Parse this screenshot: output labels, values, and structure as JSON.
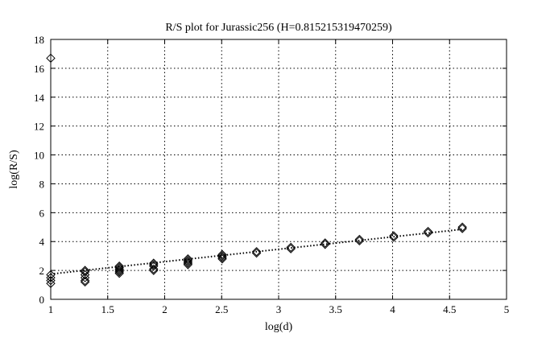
{
  "chart_data": {
    "type": "scatter",
    "title": "R/S plot for Jurassic256 (H=0.815215319470259)",
    "xlabel": "log(d)",
    "ylabel": "log(R/S)",
    "xlim": [
      1,
      5
    ],
    "ylim": [
      0,
      18
    ],
    "xticks": [
      1,
      1.5,
      2,
      2.5,
      3,
      3.5,
      4,
      4.5,
      5
    ],
    "xtick_labels": [
      "1",
      "1.5",
      "2",
      "2.5",
      "3",
      "3.5",
      "4",
      "4.5",
      "5"
    ],
    "yticks": [
      0,
      2,
      4,
      6,
      8,
      10,
      12,
      14,
      16,
      18
    ],
    "ytick_labels": [
      "0",
      "2",
      "4",
      "6",
      "8",
      "10",
      "12",
      "14",
      "16",
      "18"
    ],
    "grid": true,
    "marker": "diamond",
    "series": [
      {
        "points": [
          [
            1.0,
            16.7
          ],
          [
            1.0,
            1.7
          ],
          [
            1.0,
            1.5
          ],
          [
            1.0,
            1.3
          ],
          [
            1.0,
            1.1
          ],
          [
            1.301,
            2.0
          ],
          [
            1.301,
            1.9
          ],
          [
            1.301,
            1.7
          ],
          [
            1.301,
            1.5
          ],
          [
            1.301,
            1.3
          ],
          [
            1.301,
            1.2
          ],
          [
            1.602,
            2.3
          ],
          [
            1.602,
            2.2
          ],
          [
            1.602,
            2.1
          ],
          [
            1.602,
            2.0
          ],
          [
            1.602,
            1.9
          ],
          [
            1.602,
            1.8
          ],
          [
            1.903,
            2.5
          ],
          [
            1.903,
            2.4
          ],
          [
            1.903,
            2.3
          ],
          [
            1.903,
            2.1
          ],
          [
            1.903,
            2.0
          ],
          [
            2.204,
            2.8
          ],
          [
            2.204,
            2.7
          ],
          [
            2.204,
            2.6
          ],
          [
            2.204,
            2.5
          ],
          [
            2.204,
            2.4
          ],
          [
            2.505,
            3.1
          ],
          [
            2.505,
            3.0
          ],
          [
            2.505,
            2.9
          ],
          [
            2.505,
            2.8
          ],
          [
            2.806,
            3.3
          ],
          [
            2.806,
            3.2
          ],
          [
            3.107,
            3.6
          ],
          [
            3.107,
            3.5
          ],
          [
            3.408,
            3.9
          ],
          [
            3.408,
            3.8
          ],
          [
            3.709,
            4.15
          ],
          [
            3.709,
            4.05
          ],
          [
            4.01,
            4.4
          ],
          [
            4.01,
            4.3
          ],
          [
            4.311,
            4.7
          ],
          [
            4.311,
            4.6
          ],
          [
            4.612,
            5.0
          ],
          [
            4.612,
            4.9
          ]
        ]
      }
    ],
    "fit_line": {
      "style": "dotted",
      "x": [
        1.0,
        4.612
      ],
      "y": [
        1.75,
        4.85
      ]
    }
  }
}
